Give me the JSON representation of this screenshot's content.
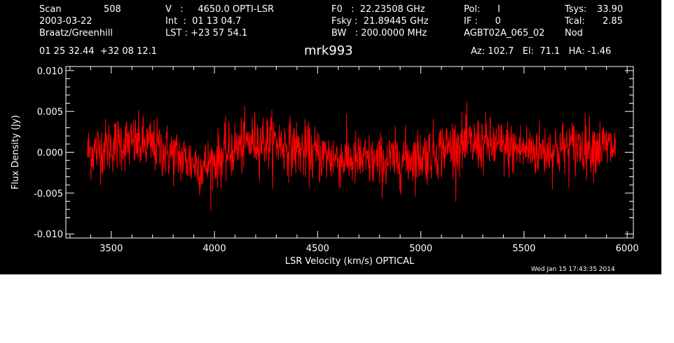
{
  "header": {
    "scan_label": "Scan",
    "scan_value": "508",
    "date": "2003-03-22",
    "observer": "Braatz/Greenhill",
    "v_line": "V   :     4650.0 OPTI-LSR",
    "int_line": "Int  :  01 13 04.7",
    "lst_line": "LST : +23 57 54.1",
    "f0_line": "F0   :  22.23508 GHz",
    "fsky_line": "Fsky :  21.89445 GHz",
    "bw_line": "BW   : 200.0000 MHz",
    "pol_line": "Pol:      I",
    "if_line": "IF :      0",
    "proj_line": "AGBT02A_065_02",
    "tsys_label": "Tsys:",
    "tsys_value": "33.90",
    "tcal_label": "Tcal:",
    "tcal_value": "2.85",
    "mode": "Nod",
    "coords": "01 25 32.44  +32 08 12.1",
    "az_el_ha": "Az: 102.7   El:  71.1   HA: -1.46"
  },
  "timestamp": "Wed Jan 15 17:43:35 2014",
  "chart_data": {
    "type": "line",
    "title": "mrk993",
    "xlabel": "LSR Velocity (km/s) OPTICAL",
    "ylabel": "Flux Density (Jy)",
    "xlim": [
      3280,
      6030
    ],
    "ylim": [
      -0.0105,
      0.0105
    ],
    "x_ticks": [
      3500,
      4000,
      4500,
      5000,
      5500,
      6000
    ],
    "y_ticks": [
      -0.01,
      -0.005,
      0.0,
      0.005,
      0.01
    ],
    "x_tick_labels": [
      "3500",
      "4000",
      "4500",
      "5000",
      "5500",
      "6000"
    ],
    "y_tick_labels": [
      "-0.010",
      "-0.005",
      "0.000",
      "0.005",
      "0.010"
    ],
    "grid": false,
    "line_color": "#ff0000",
    "background": "#000000",
    "axis_color": "#ffffff",
    "x_start": 3385,
    "x_end": 5945,
    "noise_sigma": 0.0017,
    "baseline_knots": {
      "x": [
        3385,
        3550,
        3700,
        3850,
        3950,
        4100,
        4200,
        4300,
        4450,
        4600,
        4800,
        5000,
        5150,
        5300,
        5450,
        5600,
        5800,
        5945
      ],
      "y": [
        0.0,
        0.0012,
        0.0008,
        -0.0008,
        -0.0018,
        0.0005,
        0.0015,
        0.0012,
        0.0,
        -0.0008,
        -0.0012,
        -0.0005,
        0.0008,
        0.001,
        0.0004,
        0.0002,
        0.0008,
        0.0005
      ]
    }
  }
}
